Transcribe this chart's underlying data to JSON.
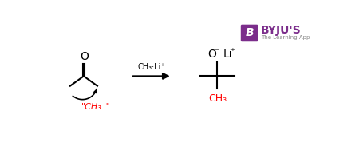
{
  "bg_color": "#ffffff",
  "byju_purple": "#7B2D8B",
  "byju_text": "BYJU'S",
  "byju_sub": "The Learning App",
  "black_color": "#000000",
  "red_color": "#ff0000",
  "gray_color": "#888888",
  "reagent_label": "CH₃·Li⁺",
  "reactant_label": "\"CH₃⁻\"",
  "product_CH3_label": "CH₃"
}
